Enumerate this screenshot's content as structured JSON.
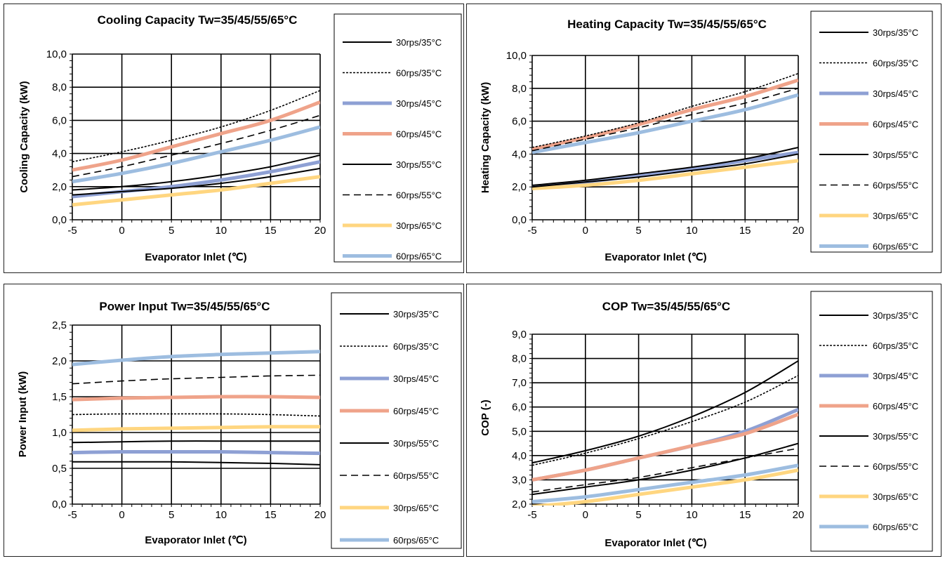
{
  "colors": {
    "black": "#000000",
    "blue": "#8ea0d4",
    "salmon": "#efa38a",
    "yellow": "#ffd680",
    "lightblue": "#9dbde0"
  },
  "legend_styles": [
    {
      "color": "#000000",
      "dash": "solid",
      "width": 2
    },
    {
      "color": "#000000",
      "dash": "dotted",
      "width": 1.6
    },
    {
      "color": "#8ea0d4",
      "dash": "solid",
      "width": 5
    },
    {
      "color": "#efa38a",
      "dash": "solid",
      "width": 5
    },
    {
      "color": "#000000",
      "dash": "solid",
      "width": 2
    },
    {
      "color": "#000000",
      "dash": "dashed",
      "width": 1.6
    },
    {
      "color": "#ffd680",
      "dash": "solid",
      "width": 5
    },
    {
      "color": "#9dbde0",
      "dash": "solid",
      "width": 5
    }
  ],
  "chart_data": [
    {
      "type": "line",
      "title": "Cooling Capacity  Tw=35/45/55/65°C",
      "xlabel": "Evaporator Inlet (℃)",
      "ylabel": "Cooling Capacity (kW)",
      "xlim": [
        -5,
        20
      ],
      "ylim": [
        0,
        10
      ],
      "xticks": [
        "-5",
        "0",
        "5",
        "10",
        "15",
        "20"
      ],
      "yticks": [
        "0,0",
        "2,0",
        "4,0",
        "6,0",
        "8,0",
        "10,0"
      ],
      "x": [
        -5,
        0,
        5,
        10,
        15,
        20
      ],
      "grid": true,
      "legend_position": "right",
      "series": [
        {
          "name": "30rps/35°C",
          "values": [
            1.8,
            2.0,
            2.3,
            2.7,
            3.2,
            3.9
          ]
        },
        {
          "name": "60rps/35°C",
          "values": [
            3.5,
            4.1,
            4.8,
            5.6,
            6.6,
            7.8
          ]
        },
        {
          "name": "30rps/45°C",
          "values": [
            1.4,
            1.7,
            2.0,
            2.4,
            2.9,
            3.5
          ]
        },
        {
          "name": "60rps/45°C",
          "values": [
            3.0,
            3.6,
            4.4,
            5.2,
            6.0,
            7.1
          ]
        },
        {
          "name": "30rps/55°C",
          "values": [
            1.5,
            1.7,
            1.9,
            2.2,
            2.6,
            3.1
          ]
        },
        {
          "name": "60rps/55°C",
          "values": [
            2.6,
            3.2,
            3.9,
            4.6,
            5.4,
            6.3
          ]
        },
        {
          "name": "30rps/65°C",
          "values": [
            0.9,
            1.2,
            1.5,
            1.8,
            2.2,
            2.6
          ]
        },
        {
          "name": "60rps/65°C",
          "values": [
            2.3,
            2.8,
            3.4,
            4.1,
            4.8,
            5.6
          ]
        }
      ]
    },
    {
      "type": "line",
      "title": "Heating  Capacity  Tw=35/45/55/65°C",
      "xlabel": "Evaporator Inlet (℃)",
      "ylabel": "Heating Capacity (kW)",
      "xlim": [
        -5,
        20
      ],
      "ylim": [
        0,
        10
      ],
      "xticks": [
        "-5",
        "0",
        "5",
        "10",
        "15",
        "20"
      ],
      "yticks": [
        "0,0",
        "2,0",
        "4,0",
        "6,0",
        "8,0",
        "10,0"
      ],
      "x": [
        -5,
        0,
        5,
        10,
        15,
        20
      ],
      "grid": true,
      "legend_position": "right",
      "series": [
        {
          "name": "30rps/35°C",
          "values": [
            2.1,
            2.4,
            2.8,
            3.2,
            3.7,
            4.4
          ]
        },
        {
          "name": "60rps/35°C",
          "values": [
            4.4,
            5.1,
            5.9,
            6.9,
            7.8,
            8.9
          ]
        },
        {
          "name": "30rps/45°C",
          "values": [
            2.0,
            2.3,
            2.7,
            3.1,
            3.6,
            4.1
          ]
        },
        {
          "name": "60rps/45°C",
          "values": [
            4.3,
            5.0,
            5.8,
            6.7,
            7.5,
            8.5
          ]
        },
        {
          "name": "30rps/55°C",
          "values": [
            2.0,
            2.3,
            2.6,
            3.0,
            3.4,
            4.0
          ]
        },
        {
          "name": "60rps/55°C",
          "values": [
            4.2,
            4.9,
            5.6,
            6.4,
            7.1,
            8.0
          ]
        },
        {
          "name": "30rps/65°C",
          "values": [
            1.9,
            2.1,
            2.4,
            2.8,
            3.2,
            3.6
          ]
        },
        {
          "name": "60rps/65°C",
          "values": [
            4.1,
            4.7,
            5.3,
            6.0,
            6.7,
            7.6
          ]
        }
      ]
    },
    {
      "type": "line",
      "title": "Power Input Tw=35/45/55/65°C",
      "xlabel": "Evaporator Inlet (℃)",
      "ylabel": "Power Input (kW)",
      "xlim": [
        -5,
        20
      ],
      "ylim": [
        0,
        2.5
      ],
      "xticks": [
        "-5",
        "0",
        "5",
        "10",
        "15",
        "20"
      ],
      "yticks": [
        "0,0",
        "0,5",
        "1,0",
        "1,5",
        "2,0",
        "2,5"
      ],
      "x": [
        -5,
        0,
        5,
        10,
        15,
        20
      ],
      "grid": true,
      "legend_position": "right",
      "series": [
        {
          "name": "30rps/35°C",
          "values": [
            0.59,
            0.59,
            0.59,
            0.58,
            0.57,
            0.55
          ]
        },
        {
          "name": "60rps/35°C",
          "values": [
            1.25,
            1.26,
            1.26,
            1.26,
            1.25,
            1.23
          ]
        },
        {
          "name": "30rps/45°C",
          "values": [
            0.72,
            0.73,
            0.73,
            0.73,
            0.72,
            0.71
          ]
        },
        {
          "name": "60rps/45°C",
          "values": [
            1.46,
            1.48,
            1.49,
            1.5,
            1.5,
            1.49
          ]
        },
        {
          "name": "30rps/55°C",
          "values": [
            0.86,
            0.87,
            0.88,
            0.88,
            0.88,
            0.88
          ]
        },
        {
          "name": "60rps/55°C",
          "values": [
            1.68,
            1.72,
            1.75,
            1.77,
            1.79,
            1.8
          ]
        },
        {
          "name": "30rps/65°C",
          "values": [
            1.03,
            1.05,
            1.06,
            1.07,
            1.08,
            1.08
          ]
        },
        {
          "name": "60rps/65°C",
          "values": [
            1.95,
            2.01,
            2.06,
            2.09,
            2.11,
            2.13
          ]
        }
      ]
    },
    {
      "type": "line",
      "title": "COP Tw=35/45/55/65°C",
      "xlabel": "Evaporator Inlet (℃)",
      "ylabel": "COP (-)",
      "xlim": [
        -5,
        20
      ],
      "ylim": [
        2,
        9
      ],
      "xticks": [
        "-5",
        "0",
        "5",
        "10",
        "15",
        "20"
      ],
      "yticks": [
        "2,0",
        "3,0",
        "4,0",
        "5,0",
        "6,0",
        "7,0",
        "8,0",
        "9,0"
      ],
      "x": [
        -5,
        0,
        5,
        10,
        15,
        20
      ],
      "grid": true,
      "legend_position": "right",
      "series": [
        {
          "name": "30rps/35°C",
          "values": [
            3.7,
            4.2,
            4.8,
            5.6,
            6.6,
            7.9
          ]
        },
        {
          "name": "60rps/35°C",
          "values": [
            3.6,
            4.1,
            4.7,
            5.4,
            6.2,
            7.3
          ]
        },
        {
          "name": "30rps/45°C",
          "values": [
            3.0,
            3.4,
            3.9,
            4.4,
            5.0,
            5.9
          ]
        },
        {
          "name": "60rps/45°C",
          "values": [
            3.0,
            3.4,
            3.9,
            4.4,
            4.9,
            5.7
          ]
        },
        {
          "name": "30rps/55°C",
          "values": [
            2.4,
            2.7,
            3.0,
            3.4,
            3.9,
            4.5
          ]
        },
        {
          "name": "60rps/55°C",
          "values": [
            2.5,
            2.8,
            3.1,
            3.5,
            3.9,
            4.3
          ]
        },
        {
          "name": "30rps/65°C",
          "values": [
            1.9,
            2.1,
            2.4,
            2.7,
            3.0,
            3.4
          ]
        },
        {
          "name": "60rps/65°C",
          "values": [
            2.1,
            2.3,
            2.6,
            2.9,
            3.2,
            3.6
          ]
        }
      ]
    }
  ]
}
